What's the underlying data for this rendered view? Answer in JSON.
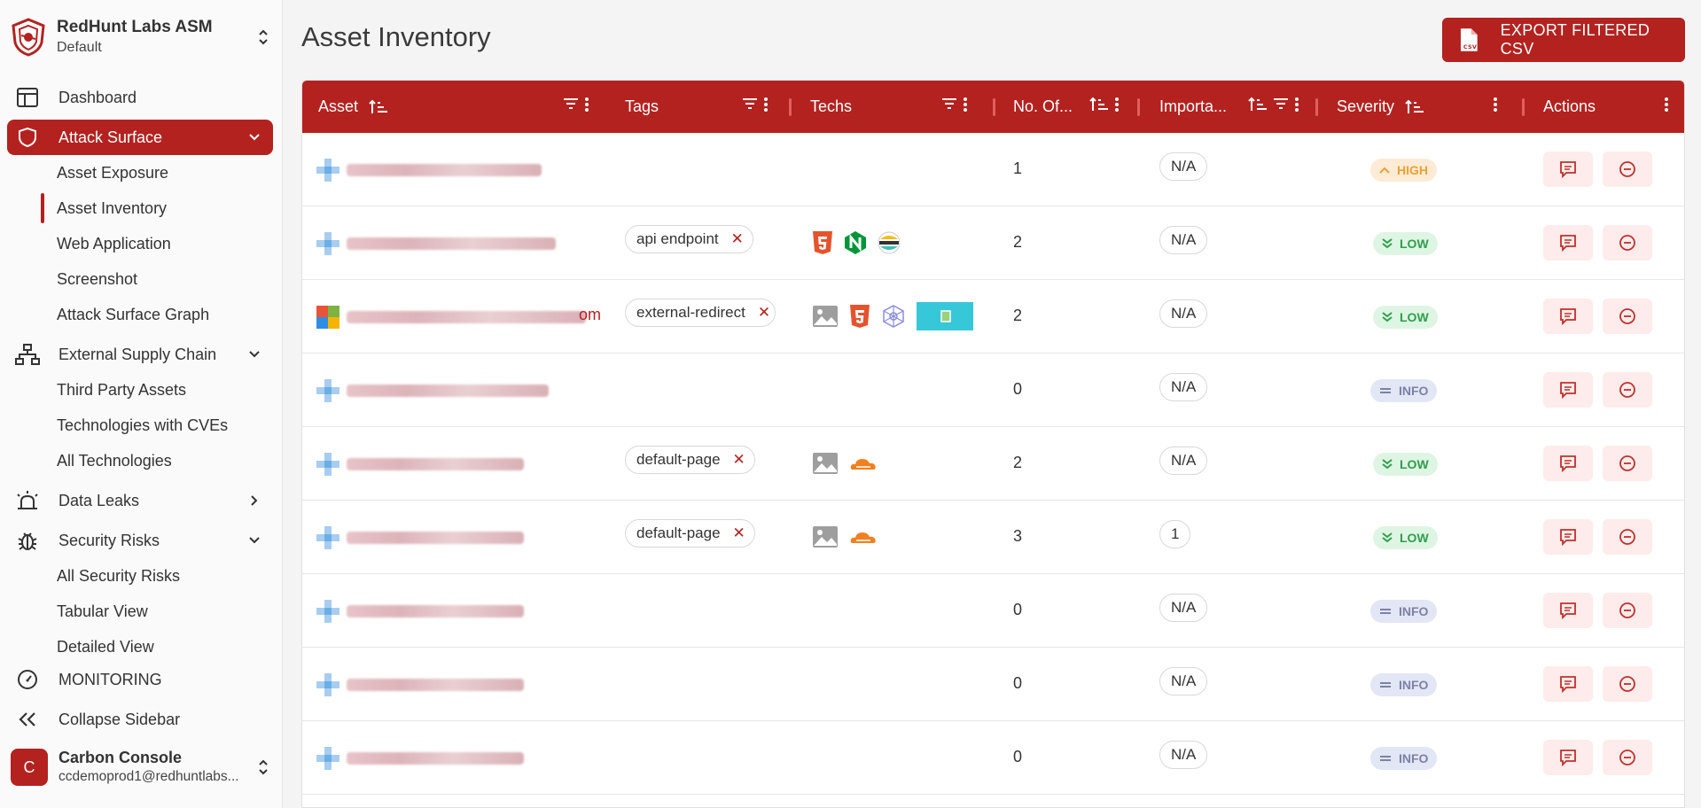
{
  "org": {
    "name": "RedHunt Labs ASM",
    "workspace": "Default"
  },
  "nav": {
    "dashboard": "Dashboard",
    "attack_surface": "Attack Surface",
    "attack_surface_sub": [
      "Asset Exposure",
      "Asset Inventory",
      "Web Application",
      "Screenshot",
      "Attack Surface Graph"
    ],
    "supply_chain": "External Supply Chain",
    "supply_chain_sub": [
      "Third Party Assets",
      "Technologies with CVEs",
      "All Technologies"
    ],
    "data_leaks": "Data Leaks",
    "security_risks": "Security Risks",
    "security_risks_sub": [
      "All Security Risks",
      "Tabular View",
      "Detailed View"
    ],
    "monitoring": "MONITORING",
    "collapse": "Collapse Sidebar"
  },
  "user": {
    "initial": "C",
    "name": "Carbon Console",
    "email": "ccdemoprod1@redhuntlabs..."
  },
  "page": {
    "title": "Asset Inventory",
    "export_label": "EXPORT FILTERED CSV",
    "csv_icon_text": "CSV"
  },
  "table": {
    "columns": [
      "Asset",
      "Tags",
      "Techs",
      "No. Of...",
      "Importa...",
      "Severity",
      "Actions"
    ],
    "rows": [
      {
        "asset_suffix": "",
        "tag": "",
        "techs": [],
        "count": "1",
        "importance": "N/A",
        "severity": "HIGH",
        "sev_class": "high"
      },
      {
        "asset_suffix": "",
        "tag": "api endpoint",
        "techs": [
          "html5-icon",
          "nginx-icon",
          "elastic-icon"
        ],
        "count": "2",
        "importance": "N/A",
        "severity": "LOW",
        "sev_class": "low"
      },
      {
        "asset_suffix": "om",
        "tag": "external-redirect",
        "techs": [
          "image-icon",
          "html5-icon",
          "hexagon-tech-icon",
          "screenshot-thumbnail"
        ],
        "count": "2",
        "importance": "N/A",
        "severity": "LOW",
        "sev_class": "low"
      },
      {
        "asset_suffix": "",
        "tag": "",
        "techs": [],
        "count": "0",
        "importance": "N/A",
        "severity": "INFO",
        "sev_class": "info"
      },
      {
        "asset_suffix": "",
        "tag": "default-page",
        "techs": [
          "image-icon",
          "cloudflare-icon"
        ],
        "count": "2",
        "importance": "N/A",
        "severity": "LOW",
        "sev_class": "low"
      },
      {
        "asset_suffix": "",
        "tag": "default-page",
        "techs": [
          "image-icon",
          "cloudflare-icon"
        ],
        "count": "3",
        "importance": "1",
        "severity": "LOW",
        "sev_class": "low"
      },
      {
        "asset_suffix": "",
        "tag": "",
        "techs": [],
        "count": "0",
        "importance": "N/A",
        "severity": "INFO",
        "sev_class": "info"
      },
      {
        "asset_suffix": "",
        "tag": "",
        "techs": [],
        "count": "0",
        "importance": "N/A",
        "severity": "INFO",
        "sev_class": "info"
      },
      {
        "asset_suffix": "",
        "tag": "",
        "techs": [],
        "count": "0",
        "importance": "N/A",
        "severity": "INFO",
        "sev_class": "info"
      }
    ]
  },
  "colors": {
    "brand": "#b3221f",
    "high": "#f0a030",
    "low": "#2f9e4c",
    "info": "#7c82a6"
  }
}
